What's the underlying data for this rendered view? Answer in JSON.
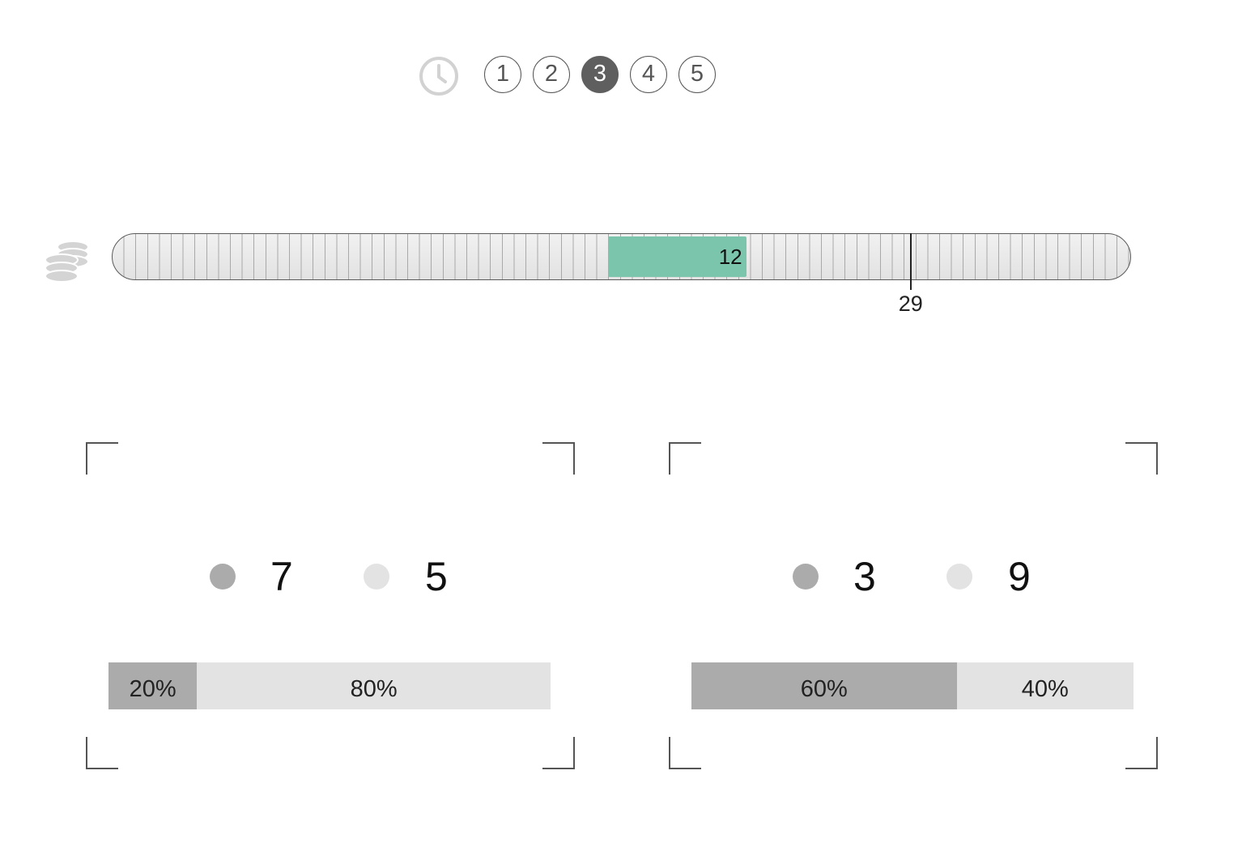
{
  "stepper": {
    "clock_icon": "clock-icon",
    "steps": [
      {
        "label": "1",
        "active": false
      },
      {
        "label": "2",
        "active": false
      },
      {
        "label": "3",
        "active": true
      },
      {
        "label": "4",
        "active": false
      },
      {
        "label": "5",
        "active": false
      }
    ]
  },
  "budget": {
    "icon": "coins-icon",
    "scale_max": 37,
    "fill_start": 18,
    "fill_value": "12",
    "fill_end": 23,
    "marker_value": "29",
    "fill_color": "#7cc5ad"
  },
  "panels": [
    {
      "count_a": "7",
      "count_b": "5",
      "bar": [
        {
          "label": "20%",
          "fraction": 0.2
        },
        {
          "label": "80%",
          "fraction": 0.8
        }
      ]
    },
    {
      "count_a": "3",
      "count_b": "9",
      "bar": [
        {
          "label": "60%",
          "fraction": 0.6
        },
        {
          "label": "40%",
          "fraction": 0.4
        }
      ]
    }
  ],
  "colors": {
    "dark_gray": "#ababab",
    "light_gray": "#e3e3e3",
    "active_step": "#5f5f5f"
  }
}
